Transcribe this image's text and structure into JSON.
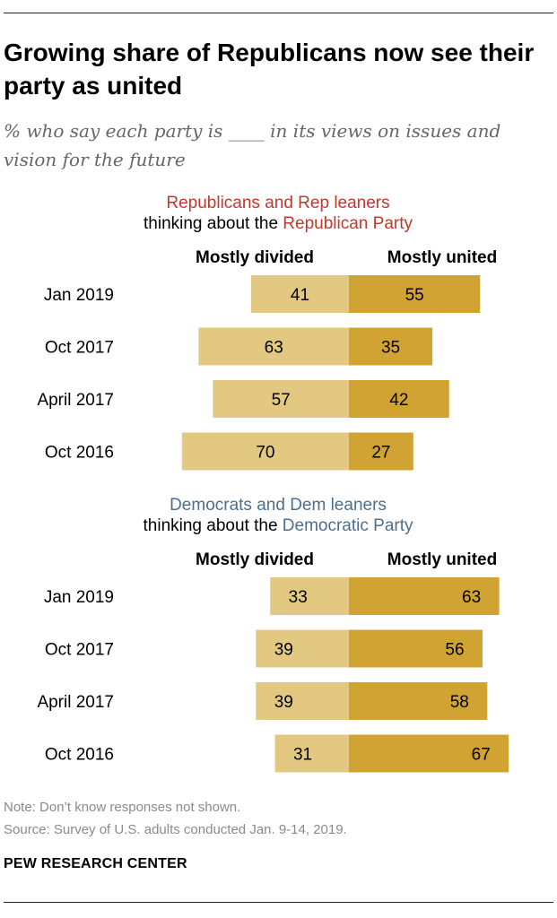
{
  "title": "Growing share of Republicans now see their party as united",
  "subtitle": "% who say each party is ____ in its views on issues and vision for the future",
  "colors": {
    "divided": "#e3c882",
    "united": "#d1a332",
    "republican": "#c0392b",
    "democrat": "#4a6f8f"
  },
  "chart_data": [
    {
      "type": "bar",
      "group_title": "Republicans and Rep leaners",
      "subheading_prefix": "thinking about the ",
      "subheading_party": "Republican Party",
      "categories": [
        "Jan 2019",
        "Oct 2017",
        "April 2017",
        "Oct 2016"
      ],
      "series": [
        {
          "name": "Mostly divided",
          "values": [
            41,
            63,
            57,
            70
          ]
        },
        {
          "name": "Mostly united",
          "values": [
            55,
            35,
            42,
            27
          ]
        }
      ]
    },
    {
      "type": "bar",
      "group_title": "Democrats and Dem leaners",
      "subheading_prefix": "thinking about the ",
      "subheading_party": "Democratic Party",
      "categories": [
        "Jan 2019",
        "Oct 2017",
        "April 2017",
        "Oct 2016"
      ],
      "series": [
        {
          "name": "Mostly divided",
          "values": [
            33,
            39,
            39,
            31
          ]
        },
        {
          "name": "Mostly united",
          "values": [
            63,
            56,
            58,
            67
          ]
        }
      ]
    }
  ],
  "note": "Note: Don’t know responses not shown.",
  "source": "Source: Survey of U.S. adults conducted Jan. 9-14, 2019.",
  "footer": "PEW RESEARCH CENTER"
}
